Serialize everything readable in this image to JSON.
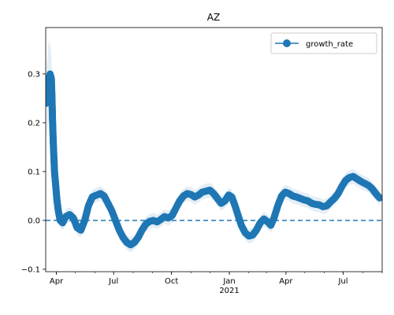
{
  "chart_data": {
    "type": "line",
    "title": "AZ",
    "xlabel": "",
    "ylabel": "",
    "x_range": [
      "2020-03-15",
      "2021-09-01"
    ],
    "ylim": [
      -0.105,
      0.395
    ],
    "grid": false,
    "legend_placement": "top-right",
    "x_ticks": [
      {
        "date": "2020-04-01",
        "label": "Apr"
      },
      {
        "date": "2020-07-01",
        "label": "Jul"
      },
      {
        "date": "2020-10-01",
        "label": "Oct"
      },
      {
        "date": "2021-01-01",
        "label": "Jan"
      },
      {
        "date": "2021-04-01",
        "label": "Apr"
      },
      {
        "date": "2021-07-01",
        "label": "Jul"
      }
    ],
    "x_year_label": {
      "date": "2021-01-01",
      "label": "2021"
    },
    "y_ticks": [
      {
        "value": -0.1,
        "label": "−0.1"
      },
      {
        "value": 0.0,
        "label": "0.0"
      },
      {
        "value": 0.1,
        "label": "0.1"
      },
      {
        "value": 0.2,
        "label": "0.2"
      },
      {
        "value": 0.3,
        "label": "0.3"
      }
    ],
    "reference_line": {
      "y": 0.0,
      "style": "dashed",
      "color": "#1f77b4"
    },
    "series": [
      {
        "name": "growth_rate",
        "color": "#1f77b4",
        "band_color": "#1f77b4",
        "points": [
          {
            "date": "2020-03-16",
            "y": 0.24,
            "lo": 0.17,
            "hi": 0.31
          },
          {
            "date": "2020-03-18",
            "y": 0.26,
            "lo": 0.19,
            "hi": 0.34
          },
          {
            "date": "2020-03-20",
            "y": 0.29,
            "lo": 0.21,
            "hi": 0.37
          },
          {
            "date": "2020-03-22",
            "y": 0.3,
            "lo": 0.23,
            "hi": 0.36
          },
          {
            "date": "2020-03-24",
            "y": 0.29,
            "lo": 0.23,
            "hi": 0.34
          },
          {
            "date": "2020-03-25",
            "y": 0.25,
            "lo": 0.2,
            "hi": 0.3
          },
          {
            "date": "2020-03-26",
            "y": 0.2,
            "lo": 0.16,
            "hi": 0.24
          },
          {
            "date": "2020-03-27",
            "y": 0.16,
            "lo": 0.13,
            "hi": 0.19
          },
          {
            "date": "2020-03-28",
            "y": 0.13,
            "lo": 0.1,
            "hi": 0.15
          },
          {
            "date": "2020-03-29",
            "y": 0.1,
            "lo": 0.08,
            "hi": 0.12
          },
          {
            "date": "2020-03-31",
            "y": 0.07,
            "lo": 0.05,
            "hi": 0.09
          },
          {
            "date": "2020-04-02",
            "y": 0.04,
            "lo": 0.02,
            "hi": 0.06
          },
          {
            "date": "2020-04-04",
            "y": 0.02,
            "lo": 0.0,
            "hi": 0.04
          },
          {
            "date": "2020-04-07",
            "y": 0.0,
            "lo": -0.015,
            "hi": 0.015
          },
          {
            "date": "2020-04-11",
            "y": -0.005,
            "lo": -0.02,
            "hi": 0.01
          },
          {
            "date": "2020-04-16",
            "y": 0.008,
            "lo": -0.007,
            "hi": 0.023
          },
          {
            "date": "2020-04-22",
            "y": 0.012,
            "lo": -0.003,
            "hi": 0.027
          },
          {
            "date": "2020-04-28",
            "y": 0.005,
            "lo": -0.01,
            "hi": 0.02
          },
          {
            "date": "2020-05-04",
            "y": -0.015,
            "lo": -0.03,
            "hi": 0.0
          },
          {
            "date": "2020-05-10",
            "y": -0.02,
            "lo": -0.035,
            "hi": -0.005
          },
          {
            "date": "2020-05-16",
            "y": 0.0,
            "lo": -0.015,
            "hi": 0.015
          },
          {
            "date": "2020-05-22",
            "y": 0.03,
            "lo": 0.015,
            "hi": 0.045
          },
          {
            "date": "2020-05-28",
            "y": 0.048,
            "lo": 0.033,
            "hi": 0.063
          },
          {
            "date": "2020-06-04",
            "y": 0.052,
            "lo": 0.037,
            "hi": 0.067
          },
          {
            "date": "2020-06-10",
            "y": 0.055,
            "lo": 0.04,
            "hi": 0.07
          },
          {
            "date": "2020-06-16",
            "y": 0.05,
            "lo": 0.035,
            "hi": 0.065
          },
          {
            "date": "2020-06-22",
            "y": 0.035,
            "lo": 0.02,
            "hi": 0.05
          },
          {
            "date": "2020-06-28",
            "y": 0.02,
            "lo": 0.005,
            "hi": 0.035
          },
          {
            "date": "2020-07-04",
            "y": 0.0,
            "lo": -0.015,
            "hi": 0.015
          },
          {
            "date": "2020-07-10",
            "y": -0.02,
            "lo": -0.035,
            "hi": -0.005
          },
          {
            "date": "2020-07-16",
            "y": -0.035,
            "lo": -0.05,
            "hi": -0.02
          },
          {
            "date": "2020-07-22",
            "y": -0.045,
            "lo": -0.06,
            "hi": -0.03
          },
          {
            "date": "2020-07-28",
            "y": -0.05,
            "lo": -0.065,
            "hi": -0.035
          },
          {
            "date": "2020-08-03",
            "y": -0.045,
            "lo": -0.06,
            "hi": -0.03
          },
          {
            "date": "2020-08-09",
            "y": -0.035,
            "lo": -0.05,
            "hi": -0.02
          },
          {
            "date": "2020-08-15",
            "y": -0.02,
            "lo": -0.035,
            "hi": -0.005
          },
          {
            "date": "2020-08-21",
            "y": -0.008,
            "lo": -0.023,
            "hi": 0.007
          },
          {
            "date": "2020-08-27",
            "y": -0.002,
            "lo": -0.017,
            "hi": 0.013
          },
          {
            "date": "2020-09-02",
            "y": 0.0,
            "lo": -0.015,
            "hi": 0.015
          },
          {
            "date": "2020-09-08",
            "y": -0.003,
            "lo": -0.018,
            "hi": 0.012
          },
          {
            "date": "2020-09-14",
            "y": 0.002,
            "lo": -0.013,
            "hi": 0.017
          },
          {
            "date": "2020-09-20",
            "y": 0.008,
            "lo": -0.007,
            "hi": 0.023
          },
          {
            "date": "2020-09-26",
            "y": 0.005,
            "lo": -0.01,
            "hi": 0.02
          },
          {
            "date": "2020-10-02",
            "y": 0.01,
            "lo": -0.005,
            "hi": 0.025
          },
          {
            "date": "2020-10-08",
            "y": 0.025,
            "lo": 0.01,
            "hi": 0.04
          },
          {
            "date": "2020-10-14",
            "y": 0.04,
            "lo": 0.025,
            "hi": 0.055
          },
          {
            "date": "2020-10-20",
            "y": 0.05,
            "lo": 0.035,
            "hi": 0.065
          },
          {
            "date": "2020-10-26",
            "y": 0.055,
            "lo": 0.04,
            "hi": 0.07
          },
          {
            "date": "2020-11-01",
            "y": 0.053,
            "lo": 0.038,
            "hi": 0.068
          },
          {
            "date": "2020-11-07",
            "y": 0.048,
            "lo": 0.033,
            "hi": 0.063
          },
          {
            "date": "2020-11-13",
            "y": 0.052,
            "lo": 0.037,
            "hi": 0.067
          },
          {
            "date": "2020-11-19",
            "y": 0.058,
            "lo": 0.043,
            "hi": 0.073
          },
          {
            "date": "2020-11-25",
            "y": 0.06,
            "lo": 0.045,
            "hi": 0.075
          },
          {
            "date": "2020-12-01",
            "y": 0.062,
            "lo": 0.047,
            "hi": 0.077
          },
          {
            "date": "2020-12-07",
            "y": 0.055,
            "lo": 0.04,
            "hi": 0.07
          },
          {
            "date": "2020-12-13",
            "y": 0.045,
            "lo": 0.03,
            "hi": 0.06
          },
          {
            "date": "2020-12-19",
            "y": 0.035,
            "lo": 0.02,
            "hi": 0.05
          },
          {
            "date": "2020-12-25",
            "y": 0.04,
            "lo": 0.025,
            "hi": 0.055
          },
          {
            "date": "2020-12-31",
            "y": 0.052,
            "lo": 0.037,
            "hi": 0.067
          },
          {
            "date": "2021-01-05",
            "y": 0.048,
            "lo": 0.033,
            "hi": 0.063
          },
          {
            "date": "2021-01-10",
            "y": 0.03,
            "lo": 0.015,
            "hi": 0.045
          },
          {
            "date": "2021-01-15",
            "y": 0.01,
            "lo": -0.005,
            "hi": 0.025
          },
          {
            "date": "2021-01-20",
            "y": -0.01,
            "lo": -0.025,
            "hi": 0.005
          },
          {
            "date": "2021-01-26",
            "y": -0.025,
            "lo": -0.04,
            "hi": -0.01
          },
          {
            "date": "2021-02-01",
            "y": -0.032,
            "lo": -0.047,
            "hi": -0.017
          },
          {
            "date": "2021-02-07",
            "y": -0.03,
            "lo": -0.045,
            "hi": -0.015
          },
          {
            "date": "2021-02-13",
            "y": -0.02,
            "lo": -0.035,
            "hi": -0.005
          },
          {
            "date": "2021-02-19",
            "y": -0.005,
            "lo": -0.02,
            "hi": 0.01
          },
          {
            "date": "2021-02-25",
            "y": 0.003,
            "lo": -0.012,
            "hi": 0.018
          },
          {
            "date": "2021-03-03",
            "y": -0.003,
            "lo": -0.018,
            "hi": 0.012
          },
          {
            "date": "2021-03-08",
            "y": -0.01,
            "lo": -0.025,
            "hi": 0.005
          },
          {
            "date": "2021-03-13",
            "y": 0.005,
            "lo": -0.01,
            "hi": 0.02
          },
          {
            "date": "2021-03-19",
            "y": 0.03,
            "lo": 0.015,
            "hi": 0.045
          },
          {
            "date": "2021-03-25",
            "y": 0.05,
            "lo": 0.035,
            "hi": 0.065
          },
          {
            "date": "2021-03-31",
            "y": 0.058,
            "lo": 0.043,
            "hi": 0.073
          },
          {
            "date": "2021-04-06",
            "y": 0.055,
            "lo": 0.04,
            "hi": 0.07
          },
          {
            "date": "2021-04-12",
            "y": 0.05,
            "lo": 0.035,
            "hi": 0.065
          },
          {
            "date": "2021-04-18",
            "y": 0.048,
            "lo": 0.033,
            "hi": 0.063
          },
          {
            "date": "2021-04-24",
            "y": 0.045,
            "lo": 0.03,
            "hi": 0.06
          },
          {
            "date": "2021-04-30",
            "y": 0.042,
            "lo": 0.027,
            "hi": 0.057
          },
          {
            "date": "2021-05-06",
            "y": 0.04,
            "lo": 0.025,
            "hi": 0.055
          },
          {
            "date": "2021-05-12",
            "y": 0.035,
            "lo": 0.02,
            "hi": 0.05
          },
          {
            "date": "2021-05-18",
            "y": 0.033,
            "lo": 0.018,
            "hi": 0.048
          },
          {
            "date": "2021-05-24",
            "y": 0.032,
            "lo": 0.017,
            "hi": 0.047
          },
          {
            "date": "2021-05-30",
            "y": 0.028,
            "lo": 0.013,
            "hi": 0.043
          },
          {
            "date": "2021-06-05",
            "y": 0.03,
            "lo": 0.015,
            "hi": 0.045
          },
          {
            "date": "2021-06-11",
            "y": 0.038,
            "lo": 0.023,
            "hi": 0.053
          },
          {
            "date": "2021-06-17",
            "y": 0.045,
            "lo": 0.03,
            "hi": 0.06
          },
          {
            "date": "2021-06-23",
            "y": 0.055,
            "lo": 0.04,
            "hi": 0.07
          },
          {
            "date": "2021-06-29",
            "y": 0.07,
            "lo": 0.055,
            "hi": 0.085
          },
          {
            "date": "2021-07-05",
            "y": 0.082,
            "lo": 0.067,
            "hi": 0.097
          },
          {
            "date": "2021-07-11",
            "y": 0.088,
            "lo": 0.073,
            "hi": 0.103
          },
          {
            "date": "2021-07-17",
            "y": 0.09,
            "lo": 0.075,
            "hi": 0.105
          },
          {
            "date": "2021-07-23",
            "y": 0.085,
            "lo": 0.07,
            "hi": 0.1
          },
          {
            "date": "2021-07-29",
            "y": 0.08,
            "lo": 0.065,
            "hi": 0.095
          },
          {
            "date": "2021-08-04",
            "y": 0.076,
            "lo": 0.061,
            "hi": 0.091
          },
          {
            "date": "2021-08-10",
            "y": 0.072,
            "lo": 0.057,
            "hi": 0.087
          },
          {
            "date": "2021-08-16",
            "y": 0.065,
            "lo": 0.05,
            "hi": 0.08
          },
          {
            "date": "2021-08-22",
            "y": 0.055,
            "lo": 0.04,
            "hi": 0.07
          },
          {
            "date": "2021-08-28",
            "y": 0.046,
            "lo": 0.031,
            "hi": 0.061
          }
        ]
      }
    ]
  }
}
